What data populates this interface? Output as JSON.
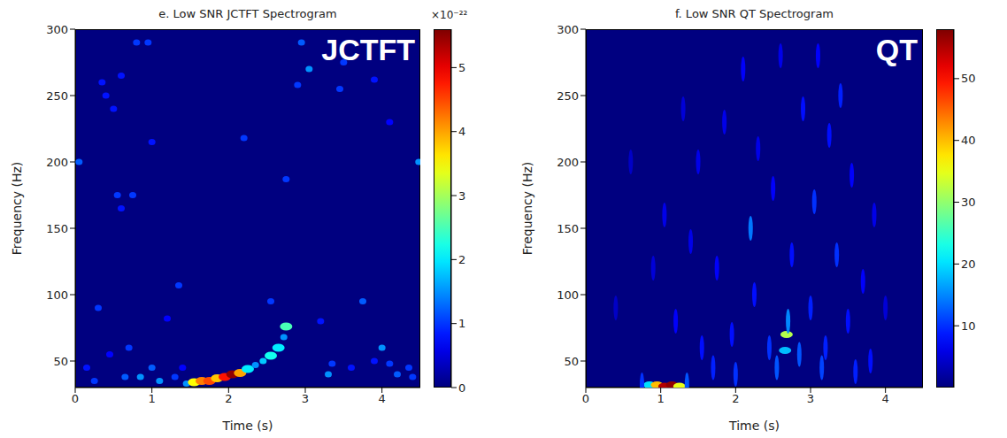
{
  "chart_data": [
    {
      "type": "heatmap",
      "title": "e. Low SNR JCTFT Spectrogram",
      "panel_label": "JCTFT",
      "x_label": "Time (s)",
      "y_label": "Frequency (Hz)",
      "xlim": [
        0,
        4.5
      ],
      "xticks": [
        0,
        1,
        2,
        3,
        4
      ],
      "ylim": [
        30,
        300
      ],
      "yticks": [
        50,
        100,
        150,
        200,
        250,
        300
      ],
      "colorbar": {
        "range": [
          0,
          5.6
        ],
        "ticks": [
          0,
          1,
          2,
          3,
          4,
          5
        ],
        "label": "×10⁻²²"
      },
      "cells": [
        [
          1.45,
          33,
          1.5
        ],
        [
          1.55,
          34,
          3.5
        ],
        [
          1.65,
          35,
          4.2
        ],
        [
          1.75,
          35,
          4.5
        ],
        [
          1.85,
          37,
          3.8
        ],
        [
          1.95,
          38,
          4.8
        ],
        [
          2.05,
          40,
          5.5
        ],
        [
          2.15,
          41,
          4.0
        ],
        [
          2.25,
          44,
          2.0
        ],
        [
          2.35,
          47,
          1.5
        ],
        [
          2.45,
          50,
          1.8
        ],
        [
          2.55,
          54,
          2.2
        ],
        [
          2.65,
          60,
          2.0
        ],
        [
          2.72,
          68,
          1.5
        ],
        [
          2.75,
          76,
          2.5
        ],
        [
          0.05,
          200,
          1.2
        ],
        [
          0.15,
          45,
          0.8
        ],
        [
          0.25,
          35,
          1.0
        ],
        [
          0.3,
          90,
          1.0
        ],
        [
          0.35,
          260,
          0.8
        ],
        [
          0.4,
          250,
          0.8
        ],
        [
          0.45,
          55,
          0.7
        ],
        [
          0.5,
          240,
          0.8
        ],
        [
          0.6,
          265,
          0.8
        ],
        [
          0.65,
          38,
          1.2
        ],
        [
          0.7,
          60,
          1.0
        ],
        [
          0.75,
          175,
          1.0
        ],
        [
          0.8,
          290,
          1.0
        ],
        [
          0.85,
          38,
          1.5
        ],
        [
          0.95,
          290,
          1.0
        ],
        [
          1.0,
          215,
          0.8
        ],
        [
          1.0,
          45,
          1.2
        ],
        [
          1.1,
          35,
          1.5
        ],
        [
          1.2,
          82,
          0.7
        ],
        [
          1.3,
          38,
          1.0
        ],
        [
          1.35,
          107,
          1.0
        ],
        [
          1.4,
          45,
          0.7
        ],
        [
          2.2,
          218,
          1.0
        ],
        [
          2.55,
          95,
          1.0
        ],
        [
          2.75,
          187,
          1.0
        ],
        [
          2.9,
          258,
          1.0
        ],
        [
          2.95,
          290,
          1.2
        ],
        [
          3.05,
          270,
          1.5
        ],
        [
          3.2,
          80,
          0.8
        ],
        [
          3.3,
          40,
          1.5
        ],
        [
          3.35,
          48,
          1.0
        ],
        [
          3.45,
          255,
          1.0
        ],
        [
          3.5,
          275,
          1.0
        ],
        [
          3.6,
          45,
          0.8
        ],
        [
          3.75,
          95,
          1.2
        ],
        [
          3.9,
          50,
          0.8
        ],
        [
          4.0,
          60,
          1.5
        ],
        [
          4.1,
          48,
          1.0
        ],
        [
          4.2,
          40,
          1.2
        ],
        [
          4.35,
          45,
          1.0
        ],
        [
          4.4,
          38,
          1.0
        ],
        [
          4.48,
          200,
          1.5
        ],
        [
          3.9,
          262,
          0.8
        ],
        [
          4.1,
          230,
          0.7
        ],
        [
          0.55,
          175,
          1.0
        ],
        [
          0.6,
          165,
          0.8
        ]
      ]
    },
    {
      "type": "heatmap",
      "title": "f. Low SNR QT Spectrogram",
      "panel_label": "QT",
      "x_label": "Time (s)",
      "y_label": "Frequency (Hz)",
      "xlim": [
        0,
        4.5
      ],
      "xticks": [
        0,
        1,
        2,
        3,
        4
      ],
      "ylim": [
        30,
        300
      ],
      "yticks": [
        50,
        100,
        150,
        200,
        250,
        300
      ],
      "colorbar": {
        "range": [
          0,
          58
        ],
        "ticks": [
          10,
          20,
          30,
          40,
          50
        ]
      },
      "cells": [
        [
          0.85,
          32,
          20
        ],
        [
          0.95,
          32,
          40
        ],
        [
          1.05,
          31,
          55
        ],
        [
          1.15,
          32,
          57
        ],
        [
          1.25,
          31,
          35
        ],
        [
          1.35,
          32,
          12
        ],
        [
          0.75,
          32,
          10
        ],
        [
          2.68,
          70,
          32
        ],
        [
          2.66,
          58,
          18
        ],
        [
          2.7,
          80,
          15
        ],
        [
          1.05,
          160,
          6
        ],
        [
          1.2,
          80,
          7
        ],
        [
          1.5,
          200,
          6
        ],
        [
          1.55,
          60,
          8
        ],
        [
          1.75,
          120,
          7
        ],
        [
          1.85,
          230,
          6
        ],
        [
          1.95,
          70,
          8
        ],
        [
          2.1,
          270,
          7
        ],
        [
          2.2,
          150,
          14
        ],
        [
          2.25,
          100,
          8
        ],
        [
          2.3,
          210,
          6
        ],
        [
          2.45,
          60,
          10
        ],
        [
          2.5,
          180,
          7
        ],
        [
          2.6,
          280,
          6
        ],
        [
          2.75,
          130,
          8
        ],
        [
          2.85,
          55,
          12
        ],
        [
          2.9,
          240,
          8
        ],
        [
          3.0,
          90,
          9
        ],
        [
          3.05,
          170,
          10
        ],
        [
          3.1,
          280,
          7
        ],
        [
          3.2,
          60,
          9
        ],
        [
          3.25,
          220,
          8
        ],
        [
          3.35,
          130,
          10
        ],
        [
          3.4,
          250,
          9
        ],
        [
          3.5,
          80,
          8
        ],
        [
          3.55,
          190,
          7
        ],
        [
          3.7,
          110,
          7
        ],
        [
          3.8,
          50,
          8
        ],
        [
          3.85,
          160,
          6
        ],
        [
          4.0,
          90,
          5
        ],
        [
          0.9,
          120,
          5
        ],
        [
          0.6,
          200,
          4
        ],
        [
          0.4,
          90,
          4
        ],
        [
          1.3,
          240,
          5
        ],
        [
          1.4,
          140,
          6
        ],
        [
          3.15,
          45,
          11
        ],
        [
          2.55,
          45,
          12
        ],
        [
          1.7,
          45,
          9
        ],
        [
          2.0,
          40,
          10
        ],
        [
          3.6,
          42,
          9
        ]
      ]
    }
  ]
}
